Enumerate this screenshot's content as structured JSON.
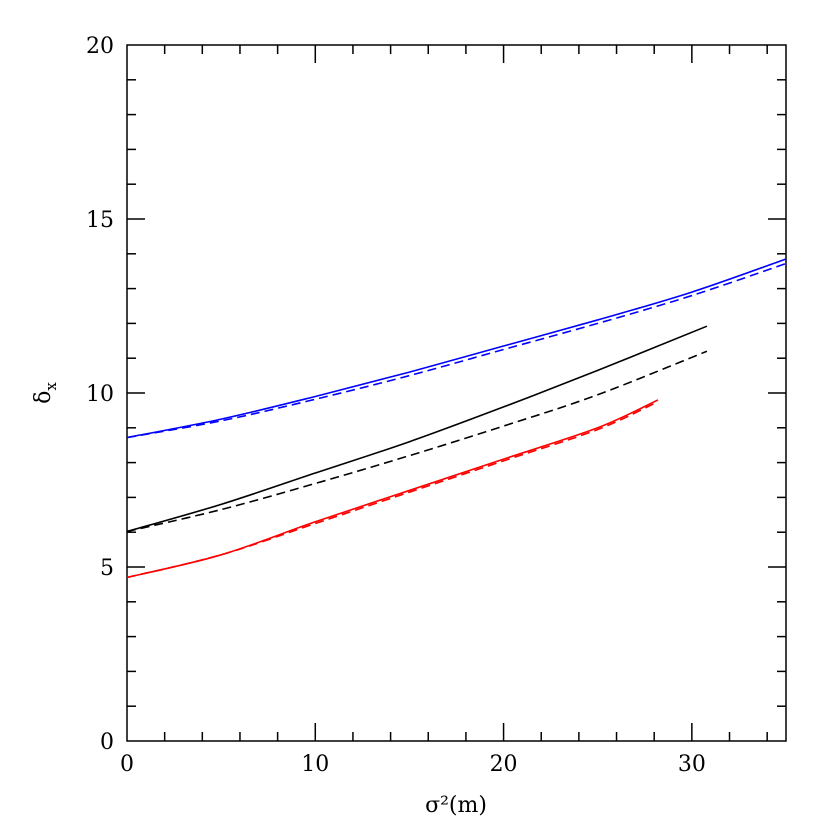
{
  "chart_data": {
    "type": "line",
    "title": "",
    "xlabel": "σ²(m)",
    "ylabel_main": "δ",
    "ylabel_sub": "x",
    "xlim": [
      0,
      35
    ],
    "ylim": [
      0,
      20
    ],
    "x_ticks_major": [
      0,
      10,
      20,
      30
    ],
    "x_ticks_minor_step": 2,
    "y_ticks_major": [
      0,
      5,
      10,
      15,
      20
    ],
    "y_ticks_minor_step": 1,
    "x_tick_labels": [
      "0",
      "10",
      "20",
      "30"
    ],
    "y_tick_labels": [
      "0",
      "5",
      "10",
      "15",
      "20"
    ],
    "grid": false,
    "legend": "none",
    "series": [
      {
        "color": "#0000ff",
        "dash": "solid",
        "x": [
          0,
          5,
          10,
          15,
          20,
          25,
          30,
          35
        ],
        "y": [
          8.72,
          9.25,
          9.9,
          10.6,
          11.35,
          12.1,
          12.9,
          13.85
        ]
      },
      {
        "color": "#0000ff",
        "dash": "dashed",
        "x": [
          0,
          5,
          10,
          15,
          20,
          25,
          30,
          35
        ],
        "y": [
          8.72,
          9.2,
          9.82,
          10.5,
          11.25,
          12.0,
          12.8,
          13.72
        ]
      },
      {
        "color": "#000000",
        "dash": "solid",
        "x": [
          0,
          5,
          10,
          15,
          20,
          25,
          30.8
        ],
        "y": [
          6.02,
          6.8,
          7.7,
          8.6,
          9.6,
          10.65,
          11.92
        ]
      },
      {
        "color": "#000000",
        "dash": "dashed",
        "x": [
          0,
          5,
          10,
          15,
          20,
          25,
          30.8
        ],
        "y": [
          6.02,
          6.65,
          7.4,
          8.2,
          9.05,
          9.95,
          11.2
        ]
      },
      {
        "color": "#ff0000",
        "dash": "solid",
        "x": [
          0,
          5,
          10,
          15,
          20,
          25,
          28.2
        ],
        "y": [
          4.7,
          5.35,
          6.3,
          7.2,
          8.1,
          9.0,
          9.8
        ]
      },
      {
        "color": "#ff0000",
        "dash": "dashed",
        "x": [
          0,
          5,
          10,
          15,
          20,
          25,
          28.2
        ],
        "y": [
          4.7,
          5.35,
          6.25,
          7.15,
          8.05,
          8.95,
          9.75
        ]
      }
    ]
  }
}
